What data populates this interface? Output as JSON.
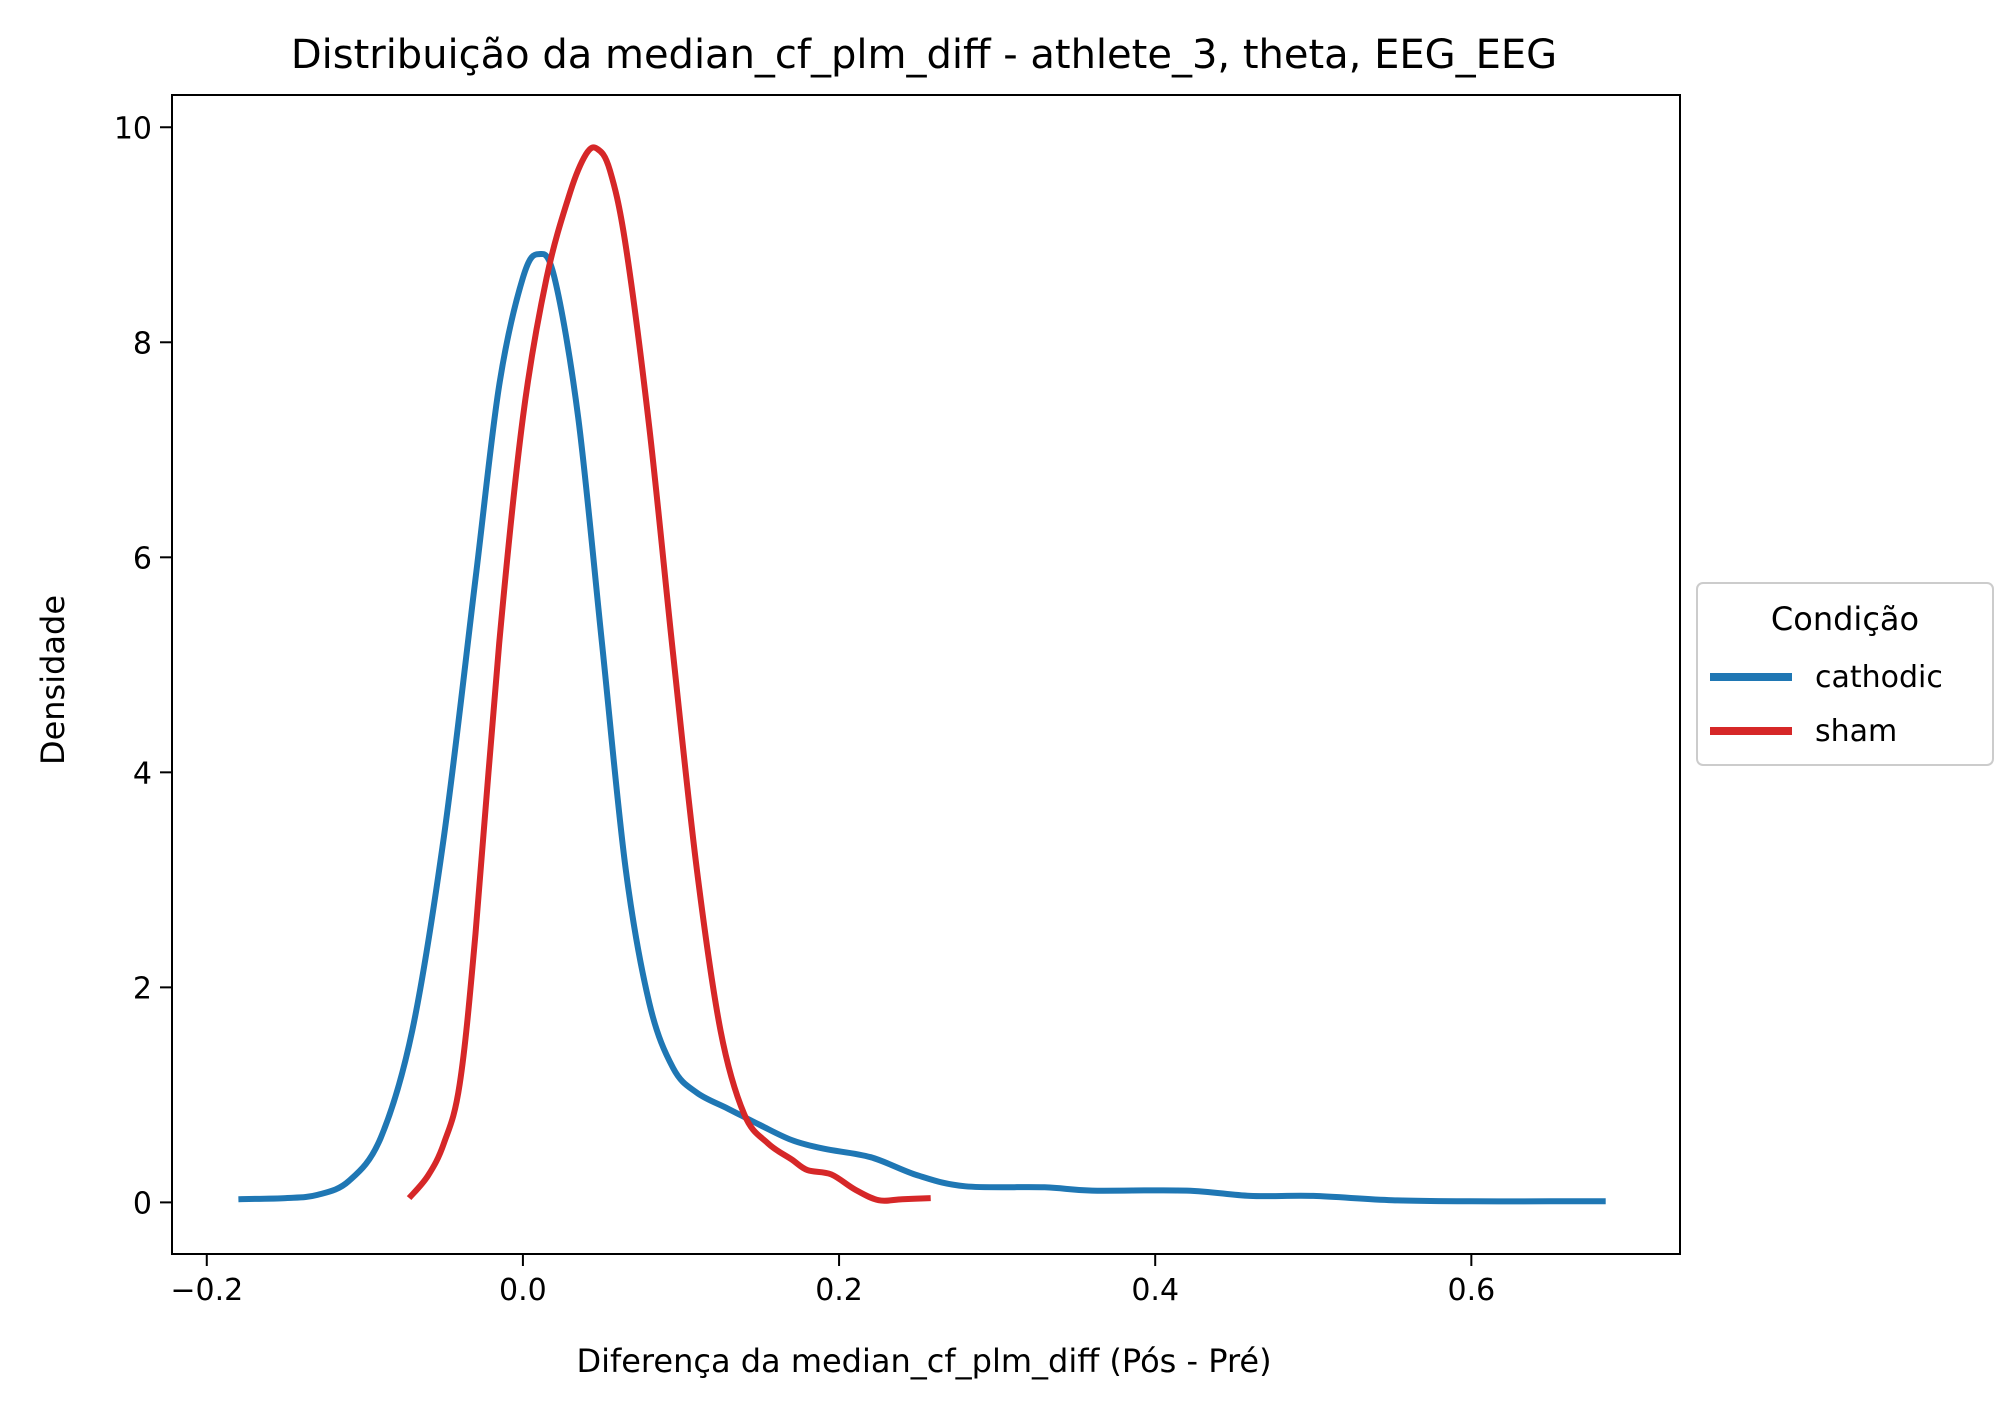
{
  "chart_data": {
    "type": "line",
    "title": "Distribuição da median_cf_plm_diff - athlete_3, theta, EEG_EEG",
    "xlabel": "Diferença da median_cf_plm_diff (Pós - Pré)",
    "ylabel": "Densidade",
    "xlim": [
      -0.222,
      0.732
    ],
    "ylim": [
      -0.48,
      10.3
    ],
    "xticks": [
      -0.2,
      0.0,
      0.2,
      0.4,
      0.6
    ],
    "xtick_labels": [
      "−0.2",
      "0.0",
      "0.2",
      "0.4",
      "0.6"
    ],
    "yticks": [
      0,
      2,
      4,
      6,
      8,
      10
    ],
    "ytick_labels": [
      "0",
      "2",
      "4",
      "6",
      "8",
      "10"
    ],
    "grid": false,
    "legend": {
      "title": "Condição",
      "placement": "center-right-outside"
    },
    "series": [
      {
        "name": "cathodic",
        "color": "#1f77b4",
        "points": [
          [
            -0.18,
            0.03
          ],
          [
            -0.15,
            0.04
          ],
          [
            -0.13,
            0.07
          ],
          [
            -0.11,
            0.2
          ],
          [
            -0.09,
            0.6
          ],
          [
            -0.07,
            1.6
          ],
          [
            -0.05,
            3.4
          ],
          [
            -0.03,
            5.8
          ],
          [
            -0.015,
            7.6
          ],
          [
            0.0,
            8.6
          ],
          [
            0.01,
            8.82
          ],
          [
            0.02,
            8.6
          ],
          [
            0.035,
            7.3
          ],
          [
            0.05,
            5.2
          ],
          [
            0.065,
            3.1
          ],
          [
            0.08,
            1.85
          ],
          [
            0.095,
            1.25
          ],
          [
            0.11,
            1.02
          ],
          [
            0.13,
            0.87
          ],
          [
            0.15,
            0.72
          ],
          [
            0.17,
            0.58
          ],
          [
            0.19,
            0.5
          ],
          [
            0.22,
            0.42
          ],
          [
            0.25,
            0.25
          ],
          [
            0.28,
            0.15
          ],
          [
            0.33,
            0.14
          ],
          [
            0.36,
            0.11
          ],
          [
            0.42,
            0.11
          ],
          [
            0.46,
            0.06
          ],
          [
            0.5,
            0.06
          ],
          [
            0.55,
            0.02
          ],
          [
            0.6,
            0.01
          ],
          [
            0.65,
            0.01
          ],
          [
            0.685,
            0.01
          ]
        ]
      },
      {
        "name": "sham",
        "color": "#d62728",
        "points": [
          [
            -0.072,
            0.04
          ],
          [
            -0.06,
            0.25
          ],
          [
            -0.05,
            0.55
          ],
          [
            -0.04,
            1.1
          ],
          [
            -0.03,
            2.5
          ],
          [
            -0.015,
            5.2
          ],
          [
            0.0,
            7.3
          ],
          [
            0.015,
            8.6
          ],
          [
            0.03,
            9.4
          ],
          [
            0.04,
            9.75
          ],
          [
            0.047,
            9.8
          ],
          [
            0.055,
            9.6
          ],
          [
            0.065,
            8.9
          ],
          [
            0.08,
            7.2
          ],
          [
            0.095,
            5.1
          ],
          [
            0.11,
            3.1
          ],
          [
            0.125,
            1.6
          ],
          [
            0.14,
            0.82
          ],
          [
            0.155,
            0.55
          ],
          [
            0.17,
            0.4
          ],
          [
            0.18,
            0.3
          ],
          [
            0.195,
            0.26
          ],
          [
            0.21,
            0.12
          ],
          [
            0.225,
            0.02
          ],
          [
            0.24,
            0.03
          ],
          [
            0.258,
            0.04
          ]
        ]
      }
    ]
  }
}
